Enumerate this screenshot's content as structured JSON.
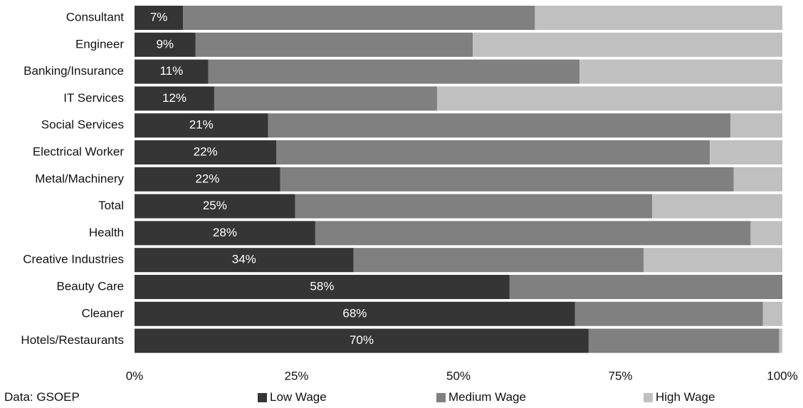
{
  "source_note": "Data: GSOEP",
  "colors": {
    "low": "#353535",
    "medium": "#808080",
    "high": "#c0c0c0"
  },
  "legend": [
    {
      "key": "low",
      "label": "Low Wage"
    },
    {
      "key": "medium",
      "label": "Medium Wage"
    },
    {
      "key": "high",
      "label": "High Wage"
    }
  ],
  "chart_data": {
    "type": "bar",
    "orientation": "horizontal",
    "stacked": "percent",
    "categories": [
      "Consultant",
      "Engineer",
      "Banking/Insurance",
      "IT Services",
      "Social Services",
      "Electrical Worker",
      "Metal/Machinery",
      "Total",
      "Health",
      "Creative Industries",
      "Beauty Care",
      "Cleaner",
      "Hotels/Restaurants"
    ],
    "series": [
      {
        "name": "Low Wage",
        "values": [
          7.5,
          9.4,
          11.4,
          12.3,
          20.6,
          21.9,
          22.5,
          24.8,
          27.9,
          33.8,
          57.9,
          68.0,
          70.1
        ]
      },
      {
        "name": "Medium Wage",
        "values": [
          54.3,
          42.8,
          57.3,
          34.4,
          71.4,
          66.9,
          70.0,
          55.1,
          67.2,
          44.8,
          42.1,
          29.0,
          29.4
        ]
      },
      {
        "name": "High Wage",
        "values": [
          38.2,
          47.8,
          31.3,
          53.3,
          8.0,
          11.2,
          7.5,
          20.1,
          4.9,
          21.4,
          0.0,
          3.0,
          0.5
        ]
      }
    ],
    "data_labels": [
      "7%",
      "9%",
      "11%",
      "12%",
      "21%",
      "22%",
      "22%",
      "25%",
      "28%",
      "34%",
      "58%",
      "68%",
      "70%"
    ],
    "xticks": [
      "0%",
      "25%",
      "50%",
      "75%",
      "100%"
    ],
    "xlim": [
      0,
      100
    ],
    "title": "",
    "xlabel": "",
    "ylabel": "",
    "grid": false,
    "legend_position": "bottom"
  }
}
